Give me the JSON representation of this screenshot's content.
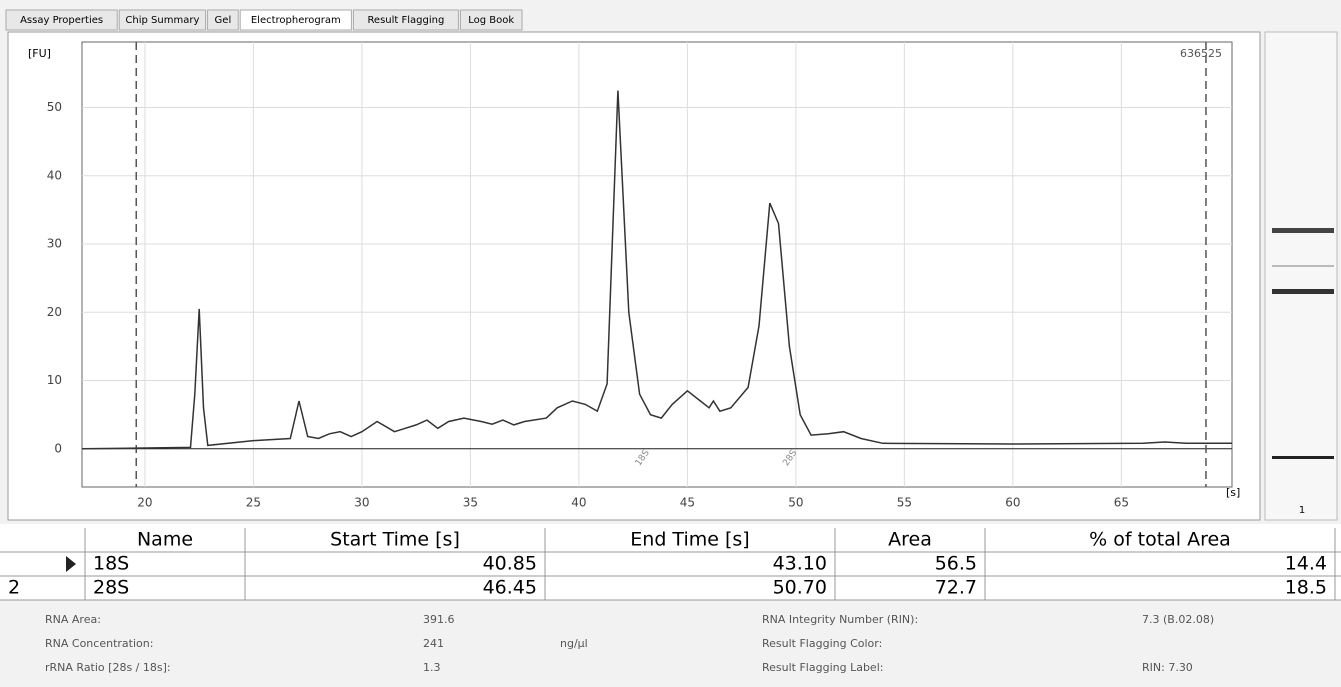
{
  "tabs": [
    "Assay Properties",
    "Chip Summary",
    "Gel",
    "Electropherogram",
    "Result Flagging",
    "Log Book"
  ],
  "chart_data": {
    "type": "line",
    "ylabel": "[FU]",
    "xlabel": "[s]",
    "sample_id": "636525",
    "color": "#333333",
    "grid": true,
    "x": [
      17.1,
      22.1,
      22.3,
      22.5,
      22.7,
      22.9,
      25,
      26.7,
      27.1,
      27.5,
      28,
      28.5,
      29,
      29.5,
      30,
      30.7,
      31.5,
      32,
      32.5,
      33,
      33.5,
      34,
      34.7,
      35.5,
      36,
      36.5,
      37,
      37.5,
      38.5,
      39,
      39.7,
      40.3,
      40.85,
      41.3,
      41.8,
      42.3,
      42.8,
      43.3,
      43.8,
      44.3,
      45,
      45.6,
      46,
      46.2,
      46.5,
      47,
      47.8,
      48.3,
      48.8,
      49.2,
      49.7,
      50.2,
      50.7,
      51.5,
      52.2,
      53,
      54,
      60,
      66,
      67,
      68,
      70.1
    ],
    "values": [
      0,
      0.2,
      8,
      20.5,
      6,
      0.5,
      1.2,
      1.5,
      7,
      1.8,
      1.5,
      2.2,
      2.5,
      1.8,
      2.5,
      4,
      2.5,
      3,
      3.5,
      4.2,
      3,
      4,
      4.5,
      4,
      3.6,
      4.2,
      3.5,
      4,
      4.5,
      6,
      7,
      6.5,
      5.5,
      9.5,
      52.5,
      20,
      8,
      5,
      4.5,
      6.5,
      8.5,
      7,
      6,
      7,
      5.5,
      6,
      9,
      18,
      36,
      33,
      15,
      5,
      2,
      2.2,
      2.5,
      1.5,
      0.8,
      0.7,
      0.8,
      1,
      0.8,
      0.8
    ],
    "xlim": [
      17.1,
      70.1
    ],
    "ylim": [
      -5.6,
      59.6
    ],
    "xticks": [
      20,
      25,
      30,
      35,
      40,
      45,
      50,
      55,
      60,
      65
    ],
    "yticks": [
      0,
      10,
      20,
      30,
      40,
      50
    ],
    "markers_x": [
      19.6,
      68.9
    ],
    "annotations": [
      {
        "text": "18S",
        "x": 42.7
      },
      {
        "text": "28S",
        "x": 49.5
      }
    ]
  },
  "gel": {
    "lane_label": "1"
  },
  "table": {
    "header": [
      "Name",
      "Start Time [s]",
      "End Time [s]",
      "Area",
      "% of total Area"
    ],
    "rows": [
      {
        "cells": [
          "18S",
          "40.85",
          "43.10",
          "56.5",
          "14.4"
        ]
      },
      {
        "marker": "2",
        "cells": [
          "28S",
          "46.45",
          "50.70",
          "72.7",
          "18.5"
        ]
      }
    ]
  },
  "summary": {
    "left": [
      {
        "label": "RNA Area:",
        "value": "391.6"
      },
      {
        "label": "RNA Concentration:",
        "value": "241",
        "unit": "ng/µl"
      },
      {
        "label": "rRNA Ratio [28s / 18s]:",
        "value": "1.3"
      }
    ],
    "right": [
      {
        "label": "RNA Integrity Number (RIN):",
        "value": "7.3  (B.02.08)"
      },
      {
        "label": "Result Flagging Color:"
      },
      {
        "label": "Result Flagging Label:",
        "value": "RIN: 7.30"
      }
    ]
  }
}
